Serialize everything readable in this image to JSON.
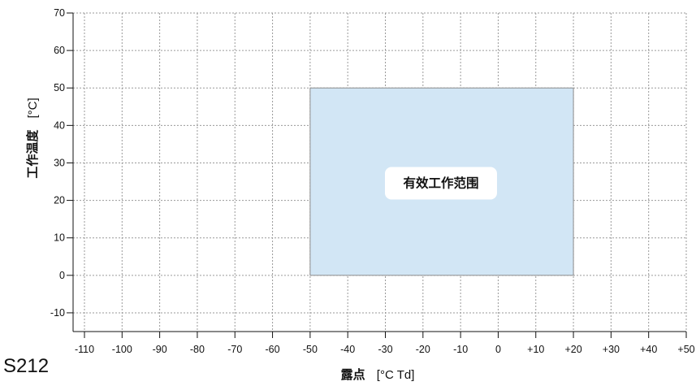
{
  "model": "S212",
  "chart_data": {
    "type": "area",
    "title": "",
    "xlabel": {
      "bold": "露点",
      "unit": "[°C Td]"
    },
    "ylabel": {
      "bold": "工作温度",
      "unit": "[°C]"
    },
    "xlim": [
      -110,
      50
    ],
    "ylim": [
      -15,
      70
    ],
    "x_ticks": [
      -110,
      -100,
      -90,
      -80,
      -70,
      -60,
      -50,
      -40,
      -30,
      -20,
      -10,
      0,
      10,
      20,
      30,
      40,
      50
    ],
    "x_tick_labels": [
      "-110",
      "-100",
      "-90",
      "-80",
      "-70",
      "-60",
      "-50",
      "-40",
      "-30",
      "-20",
      "-10",
      "0",
      "+10",
      "+20",
      "+30",
      "+40",
      "+50"
    ],
    "y_ticks": [
      -10,
      0,
      10,
      20,
      30,
      40,
      50,
      60,
      70
    ],
    "y_tick_labels": [
      "-10",
      "0",
      "10",
      "20",
      "30",
      "40",
      "50",
      "60",
      "70"
    ],
    "grid": true,
    "region": {
      "label": "有效工作范围",
      "x": [
        -50,
        20
      ],
      "y": [
        0,
        50
      ],
      "fill": "#d2e6f5",
      "stroke": "#8c8c8c"
    }
  }
}
